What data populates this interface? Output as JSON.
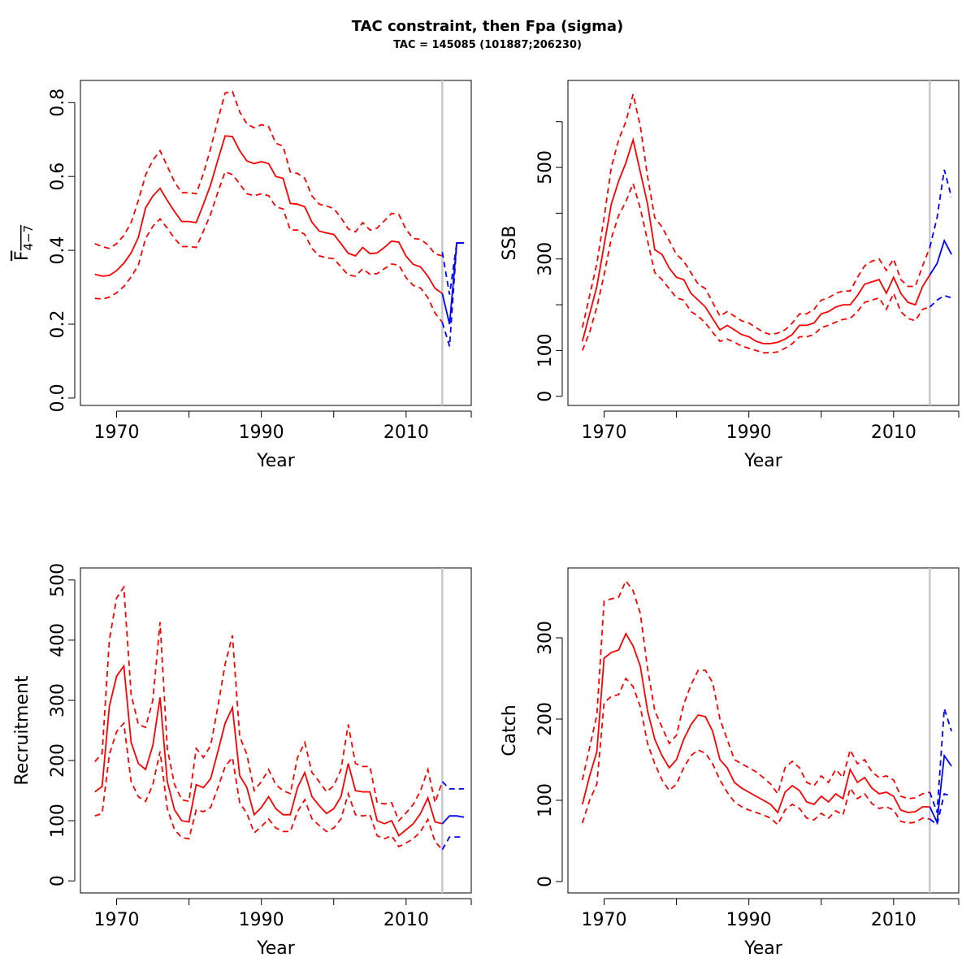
{
  "title": "TAC constraint, then Fpa (sigma)",
  "subtitle": "TAC = 145085 (101887;206230)",
  "colors": {
    "historical": "#ff0000",
    "forecast": "#0000ff",
    "divider": "#c8c8c8",
    "axis": "#000000"
  },
  "chart_data": [
    {
      "type": "line",
      "name": "F",
      "ylabel_main": "F",
      "ylabel_sub": "4−7",
      "xlabel": "Year",
      "xlim": [
        1965,
        2019
      ],
      "ylim": [
        -0.02,
        0.86
      ],
      "xticks": [
        1970,
        1990,
        2010
      ],
      "xticks_minor": [
        1980,
        2000,
        2019
      ],
      "yticks": [
        0.0,
        0.2,
        0.4,
        0.6,
        0.8
      ],
      "ytick_labels": [
        "0.0",
        "0.2",
        "0.4",
        "0.6",
        "0.8"
      ],
      "divider_year": 2015,
      "historical_years": [
        1967,
        1968,
        1969,
        1970,
        1971,
        1972,
        1973,
        1974,
        1975,
        1976,
        1977,
        1978,
        1979,
        1980,
        1981,
        1982,
        1983,
        1984,
        1985,
        1986,
        1987,
        1988,
        1989,
        1990,
        1991,
        1992,
        1993,
        1994,
        1995,
        1996,
        1997,
        1998,
        1999,
        2000,
        2001,
        2002,
        2003,
        2004,
        2005,
        2006,
        2007,
        2008,
        2009,
        2010,
        2011,
        2012,
        2013,
        2014,
        2015
      ],
      "historical": {
        "estimate": [
          0.335,
          0.33,
          0.332,
          0.345,
          0.365,
          0.393,
          0.435,
          0.515,
          0.547,
          0.568,
          0.535,
          0.505,
          0.478,
          0.478,
          0.475,
          0.525,
          0.578,
          0.645,
          0.71,
          0.708,
          0.67,
          0.642,
          0.635,
          0.64,
          0.635,
          0.6,
          0.595,
          0.527,
          0.525,
          0.518,
          0.476,
          0.452,
          0.447,
          0.443,
          0.418,
          0.392,
          0.385,
          0.408,
          0.391,
          0.393,
          0.408,
          0.425,
          0.422,
          0.384,
          0.362,
          0.355,
          0.33,
          0.297,
          0.283
        ],
        "upper": [
          0.418,
          0.41,
          0.405,
          0.418,
          0.44,
          0.475,
          0.535,
          0.604,
          0.644,
          0.67,
          0.628,
          0.585,
          0.556,
          0.556,
          0.553,
          0.608,
          0.676,
          0.753,
          0.826,
          0.83,
          0.775,
          0.742,
          0.732,
          0.74,
          0.735,
          0.69,
          0.682,
          0.612,
          0.608,
          0.595,
          0.547,
          0.525,
          0.52,
          0.513,
          0.488,
          0.458,
          0.45,
          0.475,
          0.455,
          0.46,
          0.48,
          0.5,
          0.497,
          0.456,
          0.432,
          0.43,
          0.415,
          0.39,
          0.385
        ],
        "lower": [
          0.27,
          0.268,
          0.273,
          0.285,
          0.302,
          0.328,
          0.36,
          0.432,
          0.465,
          0.485,
          0.46,
          0.432,
          0.41,
          0.41,
          0.408,
          0.452,
          0.498,
          0.558,
          0.613,
          0.605,
          0.58,
          0.553,
          0.548,
          0.553,
          0.548,
          0.518,
          0.512,
          0.455,
          0.455,
          0.443,
          0.405,
          0.385,
          0.38,
          0.377,
          0.355,
          0.333,
          0.33,
          0.35,
          0.335,
          0.337,
          0.35,
          0.363,
          0.36,
          0.326,
          0.305,
          0.298,
          0.272,
          0.23,
          0.205
        ]
      },
      "forecast_years": [
        2015,
        2016,
        2017,
        2018
      ],
      "forecast": {
        "estimate": [
          0.283,
          0.2,
          0.42,
          0.42
        ],
        "upper": [
          0.395,
          0.28,
          0.42,
          0.42
        ],
        "lower": [
          0.205,
          0.14,
          0.42,
          0.42
        ]
      }
    },
    {
      "type": "line",
      "name": "SSB",
      "ylabel_main": "SSB",
      "ylabel_sub": "",
      "xlabel": "Year",
      "xlim": [
        1965,
        2019
      ],
      "ylim": [
        -20,
        690
      ],
      "xticks": [
        1970,
        1990,
        2010
      ],
      "xticks_minor": [
        1980,
        2000,
        2019
      ],
      "yticks": [
        0,
        100,
        300,
        500
      ],
      "ytick_labels": [
        "0",
        "100",
        "300",
        "500"
      ],
      "yticks_minor": [
        200,
        400,
        600
      ],
      "divider_year": 2015,
      "historical_years": [
        1967,
        1968,
        1969,
        1970,
        1971,
        1972,
        1973,
        1974,
        1975,
        1976,
        1977,
        1978,
        1979,
        1980,
        1981,
        1982,
        1983,
        1984,
        1985,
        1986,
        1987,
        1988,
        1989,
        1990,
        1991,
        1992,
        1993,
        1994,
        1995,
        1996,
        1997,
        1998,
        1999,
        2000,
        2001,
        2002,
        2003,
        2004,
        2005,
        2006,
        2007,
        2008,
        2009,
        2010,
        2011,
        2012,
        2013,
        2014,
        2015
      ],
      "historical": {
        "estimate": [
          120,
          180,
          240,
          330,
          420,
          470,
          510,
          560,
          490,
          420,
          320,
          310,
          280,
          260,
          255,
          225,
          210,
          195,
          170,
          145,
          155,
          145,
          135,
          130,
          120,
          115,
          115,
          118,
          125,
          135,
          155,
          155,
          160,
          180,
          185,
          195,
          200,
          200,
          220,
          245,
          250,
          255,
          225,
          260,
          225,
          205,
          200,
          240,
          265
        ],
        "upper": [
          150,
          220,
          290,
          390,
          500,
          560,
          600,
          660,
          590,
          480,
          390,
          370,
          340,
          310,
          295,
          270,
          245,
          235,
          205,
          175,
          185,
          175,
          165,
          160,
          150,
          140,
          135,
          138,
          145,
          160,
          180,
          180,
          190,
          210,
          215,
          225,
          230,
          230,
          260,
          285,
          295,
          300,
          275,
          300,
          255,
          240,
          240,
          285,
          325
        ],
        "lower": [
          100,
          140,
          195,
          265,
          345,
          395,
          425,
          465,
          410,
          340,
          270,
          255,
          235,
          215,
          210,
          185,
          175,
          160,
          140,
          120,
          125,
          118,
          110,
          105,
          100,
          95,
          95,
          97,
          105,
          115,
          130,
          130,
          135,
          150,
          155,
          162,
          168,
          170,
          185,
          205,
          210,
          215,
          190,
          225,
          185,
          170,
          165,
          190,
          195
        ]
      },
      "forecast_years": [
        2015,
        2016,
        2017,
        2018
      ],
      "forecast": {
        "estimate": [
          265,
          290,
          340,
          310
        ],
        "upper": [
          325,
          390,
          495,
          435
        ],
        "lower": [
          195,
          210,
          220,
          215
        ]
      }
    },
    {
      "type": "line",
      "name": "Recruitment",
      "ylabel_main": "Recruitment",
      "ylabel_sub": "",
      "xlabel": "Year",
      "xlim": [
        1965,
        2019
      ],
      "ylim": [
        -20,
        520
      ],
      "xticks": [
        1970,
        1990,
        2010
      ],
      "xticks_minor": [
        1980,
        2000,
        2019
      ],
      "yticks": [
        0,
        100,
        200,
        300,
        400,
        500
      ],
      "ytick_labels": [
        "0",
        "100",
        "200",
        "300",
        "400",
        "500"
      ],
      "divider_year": 2015,
      "historical_years": [
        1967,
        1968,
        1969,
        1970,
        1971,
        1972,
        1973,
        1974,
        1975,
        1976,
        1977,
        1978,
        1979,
        1980,
        1981,
        1982,
        1983,
        1984,
        1985,
        1986,
        1987,
        1988,
        1989,
        1990,
        1991,
        1992,
        1993,
        1994,
        1995,
        1996,
        1997,
        1998,
        1999,
        2000,
        2001,
        2002,
        2003,
        2004,
        2005,
        2006,
        2007,
        2008,
        2009,
        2010,
        2011,
        2012,
        2013,
        2014,
        2015
      ],
      "historical": {
        "estimate": [
          148,
          157,
          290,
          340,
          357,
          230,
          195,
          185,
          225,
          305,
          165,
          118,
          100,
          98,
          160,
          155,
          170,
          215,
          262,
          288,
          175,
          155,
          110,
          122,
          140,
          120,
          110,
          110,
          155,
          180,
          140,
          125,
          112,
          120,
          140,
          195,
          150,
          148,
          148,
          100,
          95,
          100,
          75,
          85,
          95,
          112,
          138,
          98,
          95
        ],
        "upper": [
          198,
          212,
          400,
          470,
          488,
          310,
          260,
          255,
          300,
          430,
          220,
          160,
          135,
          132,
          220,
          205,
          225,
          290,
          360,
          408,
          240,
          210,
          150,
          165,
          185,
          160,
          150,
          145,
          205,
          230,
          180,
          165,
          148,
          158,
          185,
          260,
          195,
          190,
          190,
          130,
          128,
          130,
          100,
          113,
          127,
          150,
          185,
          130,
          165
        ],
        "lower": [
          108,
          112,
          210,
          248,
          262,
          165,
          140,
          132,
          160,
          215,
          120,
          85,
          72,
          70,
          118,
          115,
          122,
          155,
          190,
          205,
          130,
          112,
          80,
          90,
          103,
          88,
          82,
          82,
          115,
          135,
          103,
          92,
          82,
          88,
          103,
          145,
          110,
          108,
          110,
          75,
          70,
          75,
          57,
          63,
          70,
          82,
          102,
          65,
          52
        ]
      },
      "forecast_years": [
        2015,
        2016,
        2017,
        2018
      ],
      "forecast": {
        "estimate": [
          95,
          108,
          108,
          106
        ],
        "upper": [
          165,
          153,
          153,
          153
        ],
        "lower": [
          52,
          73,
          73,
          73
        ]
      }
    },
    {
      "type": "line",
      "name": "Catch",
      "ylabel_main": "Catch",
      "ylabel_sub": "",
      "xlabel": "Year",
      "xlim": [
        1965,
        2019
      ],
      "ylim": [
        -14,
        386
      ],
      "xticks": [
        1970,
        1990,
        2010
      ],
      "xticks_minor": [
        1980,
        2000,
        2019
      ],
      "yticks": [
        0,
        100,
        200,
        300
      ],
      "ytick_labels": [
        "0",
        "100",
        "200",
        "300"
      ],
      "divider_year": 2015,
      "historical_years": [
        1967,
        1968,
        1969,
        1970,
        1971,
        1972,
        1973,
        1974,
        1975,
        1976,
        1977,
        1978,
        1979,
        1980,
        1981,
        1982,
        1983,
        1984,
        1985,
        1986,
        1987,
        1988,
        1989,
        1990,
        1991,
        1992,
        1993,
        1994,
        1995,
        1996,
        1997,
        1998,
        1999,
        2000,
        2001,
        2002,
        2003,
        2004,
        2005,
        2006,
        2007,
        2008,
        2009,
        2010,
        2011,
        2012,
        2013,
        2014,
        2015
      ],
      "historical": {
        "estimate": [
          95,
          130,
          160,
          275,
          282,
          285,
          305,
          290,
          265,
          210,
          175,
          155,
          140,
          150,
          175,
          193,
          205,
          203,
          185,
          150,
          140,
          122,
          115,
          110,
          105,
          100,
          95,
          85,
          110,
          118,
          112,
          98,
          95,
          105,
          98,
          108,
          102,
          138,
          122,
          128,
          115,
          108,
          110,
          105,
          88,
          85,
          86,
          92,
          92
        ],
        "upper": [
          125,
          165,
          205,
          345,
          348,
          350,
          370,
          358,
          330,
          262,
          210,
          190,
          170,
          180,
          218,
          242,
          260,
          260,
          245,
          200,
          175,
          150,
          145,
          140,
          135,
          128,
          120,
          108,
          140,
          148,
          140,
          122,
          118,
          130,
          122,
          138,
          128,
          162,
          145,
          150,
          135,
          128,
          130,
          125,
          105,
          102,
          103,
          108,
          110
        ],
        "lower": [
          72,
          100,
          120,
          220,
          228,
          230,
          250,
          240,
          215,
          170,
          145,
          125,
          112,
          120,
          140,
          155,
          162,
          158,
          145,
          125,
          110,
          98,
          92,
          88,
          85,
          82,
          78,
          70,
          88,
          95,
          90,
          78,
          76,
          84,
          78,
          87,
          82,
          115,
          102,
          108,
          96,
          90,
          92,
          88,
          74,
          72,
          73,
          78,
          77
        ]
      },
      "forecast_years": [
        2015,
        2016,
        2017,
        2018
      ],
      "forecast": {
        "estimate": [
          92,
          73,
          155,
          142
        ],
        "upper": [
          110,
          85,
          213,
          185
        ],
        "lower": [
          77,
          70,
          108,
          105
        ]
      }
    }
  ]
}
